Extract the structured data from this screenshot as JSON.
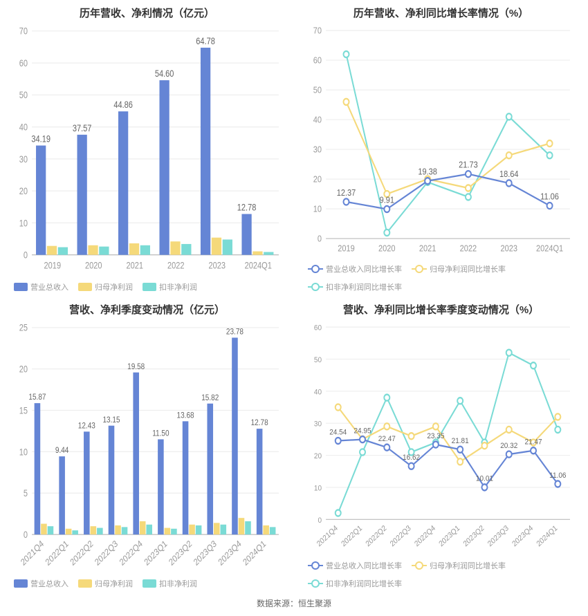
{
  "colors": {
    "blue": "#6585d5",
    "yellow": "#f5d97a",
    "teal": "#7adbd5",
    "axis": "#bbbbbb",
    "grid": "#eeeeee",
    "text_axis": "#999999",
    "text_label": "#666666",
    "title": "#333333",
    "bg": "#ffffff"
  },
  "chart1": {
    "title": "历年营收、净利情况（亿元）",
    "type": "bar",
    "categories": [
      "2019",
      "2020",
      "2021",
      "2022",
      "2023",
      "2024Q1"
    ],
    "series": [
      {
        "name": "营业总收入",
        "color": "#6585d5",
        "values": [
          34.19,
          37.57,
          44.86,
          54.6,
          64.78,
          12.78
        ]
      },
      {
        "name": "归母净利润",
        "color": "#f5d97a",
        "values": [
          2.8,
          3.0,
          3.6,
          4.2,
          5.4,
          1.1
        ]
      },
      {
        "name": "扣非净利润",
        "color": "#7adbd5",
        "values": [
          2.4,
          2.6,
          3.0,
          3.4,
          4.8,
          0.9
        ]
      }
    ],
    "bar_labels": [
      "34.19",
      "37.57",
      "44.86",
      "54.60",
      "64.78",
      "12.78"
    ],
    "ylim": [
      0,
      70
    ],
    "ytick_step": 10,
    "bar_group_width": 0.8,
    "title_fontsize": 15,
    "axis_fontsize": 11,
    "label_fontsize": 11
  },
  "chart2": {
    "title": "历年营收、净利同比增长率情况（%）",
    "type": "line",
    "categories": [
      "2019",
      "2020",
      "2021",
      "2022",
      "2023",
      "2024Q1"
    ],
    "series": [
      {
        "name": "营业总收入同比增长率",
        "color": "#6585d5",
        "values": [
          12.37,
          9.91,
          19.38,
          21.73,
          18.64,
          11.06
        ]
      },
      {
        "name": "归母净利润同比增长率",
        "color": "#f5d97a",
        "values": [
          46,
          15,
          20,
          17,
          28,
          32
        ]
      },
      {
        "name": "扣非净利润同比增长率",
        "color": "#7adbd5",
        "values": [
          62,
          2,
          19,
          14,
          41,
          28
        ]
      }
    ],
    "point_labels": [
      "12.37",
      "9.91",
      "19.38",
      "21.73",
      "18.64",
      "11.06"
    ],
    "ylim": [
      0,
      70
    ],
    "ytick_step": 10,
    "title_fontsize": 15,
    "axis_fontsize": 11,
    "label_fontsize": 11,
    "line_width": 2,
    "marker_r": 4
  },
  "chart3": {
    "title": "营收、净利季度变动情况（亿元）",
    "type": "bar",
    "categories": [
      "2021Q4",
      "2022Q1",
      "2022Q2",
      "2022Q3",
      "2022Q4",
      "2023Q1",
      "2023Q2",
      "2023Q3",
      "2023Q4",
      "2024Q1"
    ],
    "series": [
      {
        "name": "营业总收入",
        "color": "#6585d5",
        "values": [
          15.87,
          9.44,
          12.43,
          13.15,
          19.58,
          11.5,
          13.68,
          15.82,
          23.78,
          12.78
        ]
      },
      {
        "name": "归母净利润",
        "color": "#f5d97a",
        "values": [
          1.3,
          0.7,
          1.0,
          1.1,
          1.6,
          0.8,
          1.2,
          1.4,
          2.0,
          1.1
        ]
      },
      {
        "name": "扣非净利润",
        "color": "#7adbd5",
        "values": [
          1.0,
          0.5,
          0.8,
          0.9,
          1.2,
          0.7,
          1.1,
          1.2,
          1.6,
          0.9
        ]
      }
    ],
    "bar_labels": [
      "15.87",
      "9.44",
      "12.43",
      "13.15",
      "19.58",
      "11.50",
      "13.68",
      "15.82",
      "23.78",
      "12.78"
    ],
    "ylim": [
      0,
      25
    ],
    "ytick_step": 5,
    "bar_group_width": 0.8,
    "rotate_xlabels": -40,
    "title_fontsize": 15,
    "axis_fontsize": 11,
    "label_fontsize": 10
  },
  "chart4": {
    "title": "营收、净利同比增长率季度变动情况（%）",
    "type": "line",
    "categories": [
      "2021Q4",
      "2022Q1",
      "2022Q2",
      "2022Q3",
      "2022Q4",
      "2023Q1",
      "2023Q2",
      "2023Q3",
      "2023Q4",
      "2024Q1"
    ],
    "series": [
      {
        "name": "营业总收入同比增长率",
        "color": "#6585d5",
        "values": [
          24.54,
          24.95,
          22.47,
          16.62,
          23.35,
          21.81,
          10.01,
          20.32,
          21.47,
          11.06
        ]
      },
      {
        "name": "归母净利润同比增长率",
        "color": "#f5d97a",
        "values": [
          35,
          25,
          29,
          26,
          29,
          18,
          23,
          28,
          24,
          32
        ]
      },
      {
        "name": "扣非净利润同比增长率",
        "color": "#7adbd5",
        "values": [
          2,
          21,
          38,
          21,
          24,
          37,
          24,
          52,
          48,
          28
        ]
      }
    ],
    "point_labels": [
      "24.54",
      "24.95",
      "22.47",
      "16.62",
      "23.35",
      "21.81",
      "10.01",
      "20.32",
      "21.47",
      "11.06"
    ],
    "ylim": [
      0,
      60
    ],
    "ytick_step": 10,
    "rotate_xlabels": -40,
    "title_fontsize": 15,
    "axis_fontsize": 10,
    "label_fontsize": 10,
    "line_width": 2,
    "marker_r": 4
  },
  "source": "数据来源：恒生聚源"
}
